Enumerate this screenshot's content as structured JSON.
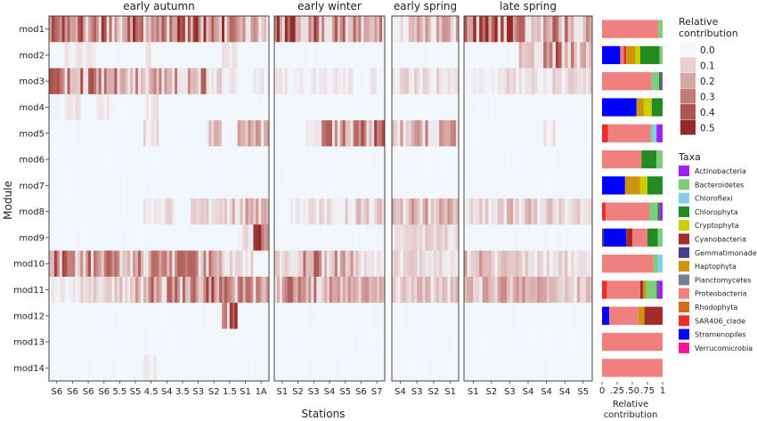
{
  "chart_data": {
    "type": "heatmap",
    "ylabel": "Module",
    "xlabel": "Stations",
    "modules": [
      "mod1",
      "mod2",
      "mod3",
      "mod4",
      "mod5",
      "mod6",
      "mod7",
      "mod8",
      "mod9",
      "mod10",
      "mod11",
      "mod12",
      "mod13",
      "mod14"
    ],
    "panels": [
      {
        "name": "early autumn",
        "stations": [
          "S6",
          "S6",
          "S6",
          "S6",
          "5.5",
          "S5",
          "4.5",
          "S4",
          "3.5",
          "S3",
          "S2",
          "1.5",
          "S1",
          "1A"
        ],
        "intensity": {
          "mod1": [
            0.4,
            0.3,
            0.4,
            0.4,
            0.3,
            0.4,
            0.3,
            0.3,
            0.4,
            0.4,
            0.3,
            0.4,
            0.3,
            0.2
          ],
          "mod2": [
            0,
            0.05,
            0.05,
            0,
            0,
            0,
            0.05,
            0,
            0,
            0,
            0,
            0.05,
            0,
            0
          ],
          "mod3": [
            0.35,
            0.3,
            0.35,
            0.3,
            0.35,
            0.3,
            0.25,
            0.25,
            0.3,
            0.3,
            0.1,
            0.05,
            0,
            0.05
          ],
          "mod4": [
            0.02,
            0.05,
            0,
            0.05,
            0,
            0,
            0.05,
            0,
            0,
            0,
            0,
            0,
            0,
            0
          ],
          "mod5": [
            0,
            0,
            0,
            0,
            0,
            0,
            0.1,
            0,
            0,
            0,
            0.15,
            0,
            0.2,
            0.2
          ],
          "mod6": [
            0,
            0,
            0,
            0,
            0,
            0,
            0,
            0,
            0,
            0,
            0,
            0,
            0,
            0
          ],
          "mod7": [
            0,
            0,
            0,
            0,
            0,
            0,
            0,
            0,
            0,
            0,
            0,
            0,
            0,
            0
          ],
          "mod8": [
            0,
            0,
            0,
            0,
            0,
            0,
            0.05,
            0.1,
            0,
            0.1,
            0.1,
            0.15,
            0.2,
            0.3
          ],
          "mod9": [
            0,
            0,
            0,
            0,
            0,
            0,
            0,
            0,
            0,
            0,
            0,
            0,
            0.1,
            0.5
          ],
          "mod10": [
            0.35,
            0.3,
            0.35,
            0.3,
            0.3,
            0.3,
            0.3,
            0.3,
            0.3,
            0.3,
            0.3,
            0.2,
            0.1,
            0
          ],
          "mod11": [
            0.05,
            0.05,
            0.1,
            0.1,
            0.15,
            0.2,
            0.3,
            0.3,
            0.3,
            0.3,
            0.35,
            0.3,
            0.3,
            0.25
          ],
          "mod12": [
            0,
            0,
            0,
            0,
            0,
            0,
            0,
            0,
            0,
            0,
            0,
            0.4,
            0,
            0
          ],
          "mod13": [
            0,
            0,
            0,
            0,
            0,
            0,
            0,
            0,
            0,
            0,
            0,
            0,
            0,
            0
          ],
          "mod14": [
            0,
            0,
            0,
            0,
            0,
            0,
            0.05,
            0,
            0,
            0,
            0,
            0,
            0,
            0
          ]
        }
      },
      {
        "name": "early winter",
        "stations": [
          "S1",
          "S2",
          "S3",
          "S4",
          "S5",
          "S6",
          "S7"
        ],
        "intensity": {
          "mod1": [
            0.45,
            0.45,
            0.45,
            0.35,
            0.3,
            0.3,
            0.3
          ],
          "mod2": [
            0,
            0,
            0,
            0,
            0,
            0,
            0
          ],
          "mod3": [
            0.05,
            0.05,
            0.05,
            0.05,
            0.05,
            0,
            0.05
          ],
          "mod4": [
            0,
            0,
            0,
            0,
            0,
            0,
            0
          ],
          "mod5": [
            0,
            0,
            0.05,
            0.3,
            0.3,
            0.35,
            0.4
          ],
          "mod6": [
            0,
            0,
            0,
            0,
            0,
            0,
            0
          ],
          "mod7": [
            0,
            0,
            0,
            0,
            0,
            0,
            0
          ],
          "mod8": [
            0,
            0.05,
            0.1,
            0.15,
            0.15,
            0.15,
            0.15
          ],
          "mod9": [
            0,
            0,
            0,
            0,
            0,
            0,
            0
          ],
          "mod10": [
            0.2,
            0.25,
            0.3,
            0.25,
            0.2,
            0.1,
            0.05
          ],
          "mod11": [
            0.3,
            0.3,
            0.3,
            0.25,
            0.2,
            0.2,
            0.2
          ],
          "mod12": [
            0,
            0,
            0,
            0,
            0,
            0,
            0
          ],
          "mod13": [
            0,
            0,
            0,
            0,
            0,
            0,
            0
          ],
          "mod14": [
            0,
            0,
            0,
            0,
            0,
            0,
            0
          ]
        }
      },
      {
        "name": "early spring",
        "stations": [
          "S4",
          "S3",
          "S2",
          "S1"
        ],
        "intensity": {
          "mod1": [
            0.15,
            0.2,
            0.2,
            0.2
          ],
          "mod2": [
            0,
            0,
            0,
            0
          ],
          "mod3": [
            0.1,
            0.1,
            0.1,
            0.05
          ],
          "mod4": [
            0,
            0,
            0,
            0
          ],
          "mod5": [
            0.2,
            0.2,
            0.25,
            0.25
          ],
          "mod6": [
            0,
            0,
            0,
            0
          ],
          "mod7": [
            0,
            0,
            0,
            0
          ],
          "mod8": [
            0.15,
            0.2,
            0.2,
            0.2
          ],
          "mod9": [
            0.1,
            0.1,
            0.1,
            0.1
          ],
          "mod10": [
            0.1,
            0.1,
            0.1,
            0.05
          ],
          "mod11": [
            0.15,
            0.15,
            0.15,
            0.15
          ],
          "mod12": [
            0,
            0,
            0,
            0
          ],
          "mod13": [
            0,
            0,
            0,
            0
          ],
          "mod14": [
            0,
            0,
            0,
            0
          ]
        }
      },
      {
        "name": "late spring",
        "stations": [
          "S1",
          "S2",
          "S3",
          "S4",
          "S4",
          "S4",
          "S5"
        ],
        "intensity": {
          "mod1": [
            0.4,
            0.45,
            0.45,
            0.3,
            0.3,
            0.3,
            0.25
          ],
          "mod2": [
            0,
            0,
            0,
            0.2,
            0.3,
            0.35,
            0.2
          ],
          "mod3": [
            0.05,
            0.05,
            0.1,
            0.1,
            0.1,
            0.1,
            0.1
          ],
          "mod4": [
            0,
            0,
            0,
            0,
            0,
            0,
            0
          ],
          "mod5": [
            0,
            0,
            0,
            0,
            0.05,
            0,
            0
          ],
          "mod6": [
            0,
            0,
            0,
            0,
            0,
            0,
            0
          ],
          "mod7": [
            0,
            0,
            0,
            0,
            0,
            0,
            0
          ],
          "mod8": [
            0.1,
            0.1,
            0.15,
            0.15,
            0.15,
            0.1,
            0.1
          ],
          "mod9": [
            0,
            0,
            0,
            0,
            0,
            0,
            0
          ],
          "mod10": [
            0.2,
            0.15,
            0.15,
            0.1,
            0.1,
            0.1,
            0.05
          ],
          "mod11": [
            0.2,
            0.2,
            0.2,
            0.2,
            0.2,
            0.15,
            0.15
          ],
          "mod12": [
            0,
            0,
            0,
            0,
            0,
            0,
            0
          ],
          "mod13": [
            0,
            0,
            0,
            0,
            0,
            0,
            0
          ],
          "mod14": [
            0,
            0,
            0,
            0,
            0,
            0,
            0
          ]
        }
      }
    ],
    "scale_title": "Relative contribution",
    "scale_ticks": [
      {
        "label": "0.0",
        "color": "#f2f8fd"
      },
      {
        "label": "0.1",
        "color": "#e8cfd0"
      },
      {
        "label": "0.2",
        "color": "#d6a7a5"
      },
      {
        "label": "0.3",
        "color": "#c27c78"
      },
      {
        "label": "0.4",
        "color": "#ad5550"
      },
      {
        "label": "0.5",
        "color": "#932b27"
      }
    ],
    "taxa_title": "Taxa",
    "taxa": [
      {
        "name": "Actinobacteria",
        "color": "#a020f0"
      },
      {
        "name": "Bacteroidetes",
        "color": "#7ccd7c"
      },
      {
        "name": "Chloroflexi",
        "color": "#87ceeb"
      },
      {
        "name": "Chlorophyta",
        "color": "#228b22"
      },
      {
        "name": "Cryptophyta",
        "color": "#cdcd00"
      },
      {
        "name": "Cyanobacteria",
        "color": "#a52a2a"
      },
      {
        "name": "Gemmatimonadetes",
        "color": "#483d8b"
      },
      {
        "name": "Haptophyta",
        "color": "#cd950c"
      },
      {
        "name": "Planctomycetes",
        "color": "#708090"
      },
      {
        "name": "Proteobacteria",
        "color": "#f08080"
      },
      {
        "name": "Rhodophyta",
        "color": "#d2691e"
      },
      {
        "name": "SAR406_clade",
        "color": "#ee2c2c"
      },
      {
        "name": "Stramenopiles",
        "color": "#0000ff"
      },
      {
        "name": "Verrucomicrobia",
        "color": "#ff1493"
      }
    ],
    "composition_xlabel": "Relative contribution",
    "composition_ticks": [
      "0",
      ".25",
      ".50",
      ".75",
      "1"
    ],
    "composition": [
      [
        [
          "Proteobacteria",
          0.93
        ],
        [
          "Bacteroidetes",
          0.07
        ]
      ],
      [
        [
          "Stramenopiles",
          0.3
        ],
        [
          "Proteobacteria",
          0.06
        ],
        [
          "SAR406_clade",
          0.04
        ],
        [
          "Haptophyta",
          0.15
        ],
        [
          "Cryptophyta",
          0.08
        ],
        [
          "Chlorophyta",
          0.32
        ],
        [
          "Bacteroidetes",
          0.05
        ]
      ],
      [
        [
          "Proteobacteria",
          0.82
        ],
        [
          "Bacteroidetes",
          0.12
        ],
        [
          "Chlorophyta",
          0.04
        ],
        [
          "Actinobacteria",
          0.02
        ]
      ],
      [
        [
          "Stramenopiles",
          0.57
        ],
        [
          "Haptophyta",
          0.12
        ],
        [
          "Cryptophyta",
          0.13
        ],
        [
          "Chlorophyta",
          0.18
        ]
      ],
      [
        [
          "SAR406_clade",
          0.1
        ],
        [
          "Proteobacteria",
          0.7
        ],
        [
          "Bacteroidetes",
          0.03
        ],
        [
          "Chloroflexi",
          0.07
        ],
        [
          "Actinobacteria",
          0.1
        ]
      ],
      [
        [
          "Proteobacteria",
          0.65
        ],
        [
          "Chlorophyta",
          0.25
        ],
        [
          "Bacteroidetes",
          0.1
        ]
      ],
      [
        [
          "Stramenopiles",
          0.38
        ],
        [
          "Haptophyta",
          0.25
        ],
        [
          "Cryptophyta",
          0.12
        ],
        [
          "Chlorophyta",
          0.25
        ]
      ],
      [
        [
          "SAR406_clade",
          0.06
        ],
        [
          "Proteobacteria",
          0.72
        ],
        [
          "Bacteroidetes",
          0.14
        ],
        [
          "Chlorophyta",
          0.03
        ],
        [
          "Actinobacteria",
          0.05
        ]
      ],
      [
        [
          "Gemmatimonadetes",
          0.03
        ],
        [
          "Stramenopiles",
          0.37
        ],
        [
          "Cyanobacteria",
          0.1
        ],
        [
          "Proteobacteria",
          0.25
        ],
        [
          "Chlorophyta",
          0.17
        ],
        [
          "Bacteroidetes",
          0.08
        ]
      ],
      [
        [
          "Proteobacteria",
          0.85
        ],
        [
          "Bacteroidetes",
          0.07
        ],
        [
          "Chloroflexi",
          0.08
        ]
      ],
      [
        [
          "SAR406_clade",
          0.08
        ],
        [
          "Proteobacteria",
          0.55
        ],
        [
          "Cyanobacteria",
          0.05
        ],
        [
          "Haptophyta",
          0.05
        ],
        [
          "Bacteroidetes",
          0.17
        ],
        [
          "Chlorophyta",
          0.02
        ],
        [
          "Actinobacteria",
          0.08
        ]
      ],
      [
        [
          "Stramenopiles",
          0.12
        ],
        [
          "Proteobacteria",
          0.48
        ],
        [
          "Haptophyta",
          0.1
        ],
        [
          "Cyanobacteria",
          0.3
        ]
      ],
      [
        [
          "Proteobacteria",
          1.0
        ]
      ],
      [
        [
          "Proteobacteria",
          1.0
        ]
      ]
    ]
  }
}
